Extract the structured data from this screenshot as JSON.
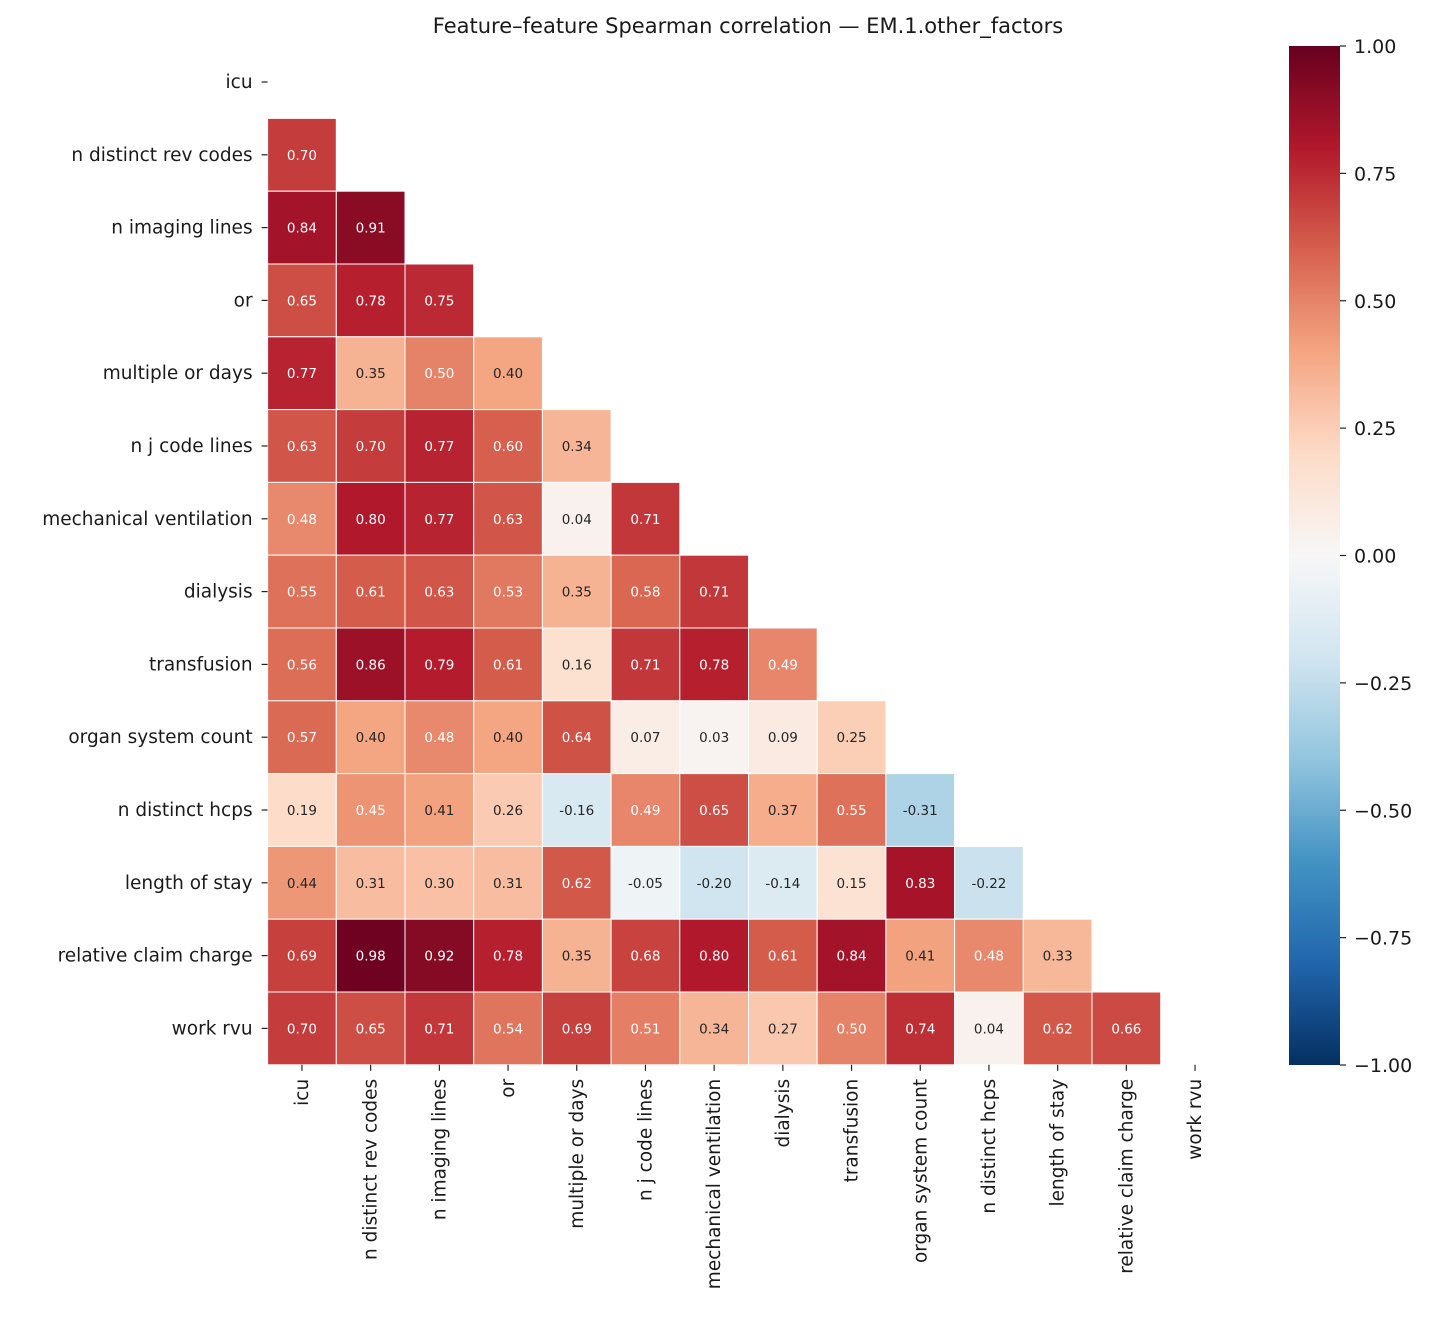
{
  "chart_data": {
    "type": "heatmap",
    "title": "Feature–feature Spearman correlation — EM.1.other_factors",
    "labels": [
      "icu",
      "n distinct rev codes",
      "n imaging lines",
      "or",
      "multiple or days",
      "n j code lines",
      "mechanical ventilation",
      "dialysis",
      "transfusion",
      "organ system count",
      "n distinct hcps",
      "length of stay",
      "relative claim charge",
      "work rvu"
    ],
    "mask": "upper triangle incl. diagonal",
    "values": [
      [],
      [
        0.7
      ],
      [
        0.84,
        0.91
      ],
      [
        0.65,
        0.78,
        0.75
      ],
      [
        0.77,
        0.35,
        0.5,
        0.4
      ],
      [
        0.63,
        0.7,
        0.77,
        0.6,
        0.34
      ],
      [
        0.48,
        0.8,
        0.77,
        0.63,
        0.04,
        0.71
      ],
      [
        0.55,
        0.61,
        0.63,
        0.53,
        0.35,
        0.58,
        0.71
      ],
      [
        0.56,
        0.86,
        0.79,
        0.61,
        0.16,
        0.71,
        0.78,
        0.49
      ],
      [
        0.57,
        0.4,
        0.48,
        0.4,
        0.64,
        0.07,
        0.03,
        0.09,
        0.25
      ],
      [
        0.19,
        0.45,
        0.41,
        0.26,
        -0.16,
        0.49,
        0.65,
        0.37,
        0.55,
        -0.31
      ],
      [
        0.44,
        0.31,
        0.3,
        0.31,
        0.62,
        -0.05,
        -0.2,
        -0.14,
        0.15,
        0.83,
        -0.22
      ],
      [
        0.69,
        0.98,
        0.92,
        0.78,
        0.35,
        0.68,
        0.8,
        0.61,
        0.84,
        0.41,
        0.48,
        0.33
      ],
      [
        0.7,
        0.65,
        0.71,
        0.54,
        0.69,
        0.51,
        0.34,
        0.27,
        0.5,
        0.74,
        0.04,
        0.62,
        0.66
      ]
    ],
    "colormap": "RdBu_r",
    "vmin": -1,
    "vmax": 1,
    "colorbar_ticks": [
      "1.00",
      "0.75",
      "0.50",
      "0.25",
      "0.00",
      "−0.25",
      "−0.50",
      "−0.75",
      "−1.00"
    ],
    "colorbar_tick_values": [
      1,
      0.75,
      0.5,
      0.25,
      0,
      -0.25,
      -0.5,
      -0.75,
      -1
    ],
    "colorbar_placement": "right"
  }
}
